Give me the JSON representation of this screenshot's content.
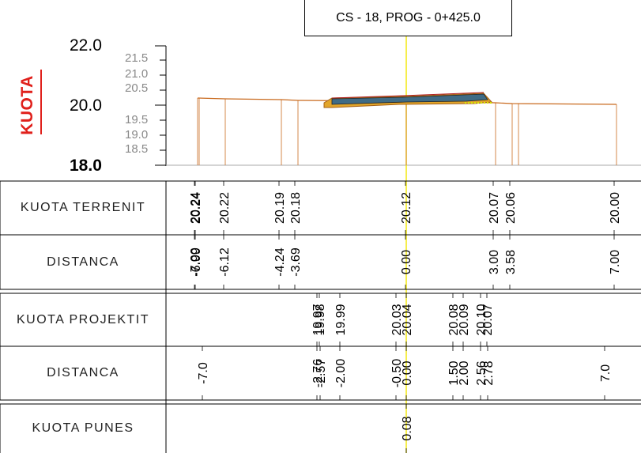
{
  "title": "CS - 18, PROG - 0+425.0",
  "axis": {
    "label": "KUOTA",
    "major": [
      "22.0",
      "20.0",
      "18.0"
    ],
    "minor": [
      "21.5",
      "21.0",
      "20.5",
      "19.5",
      "19.0",
      "18.5"
    ]
  },
  "rows": [
    {
      "label": "KUOTA  TERRENIT",
      "values": [
        "20.24",
        "20.24",
        "20.22",
        "20.19",
        "20.18",
        "20.12",
        "20.07",
        "20.06",
        "20.00"
      ]
    },
    {
      "label": "DISTANCA",
      "values": [
        "-7.00",
        "-6.99",
        "-6.12",
        "-4.24",
        "-3.69",
        "0.00",
        "3.00",
        "3.58",
        "7.00"
      ]
    },
    {
      "label": "KUOTA  PROJEKTIT",
      "values": [
        "19.97",
        "19.98",
        "19.99",
        "20.03",
        "20.04",
        "20.08",
        "20.09",
        "20.10",
        "20.07"
      ]
    },
    {
      "label": "DISTANCA",
      "values": [
        "-7.0",
        "-2.76",
        "-2.57",
        "-2.00",
        "-0.50",
        "0.00",
        "1.50",
        "2.00",
        "2.56",
        "2.78",
        "7.0"
      ]
    },
    {
      "label": "KUOTA  PUNES",
      "values": [
        "0.08"
      ]
    }
  ]
}
